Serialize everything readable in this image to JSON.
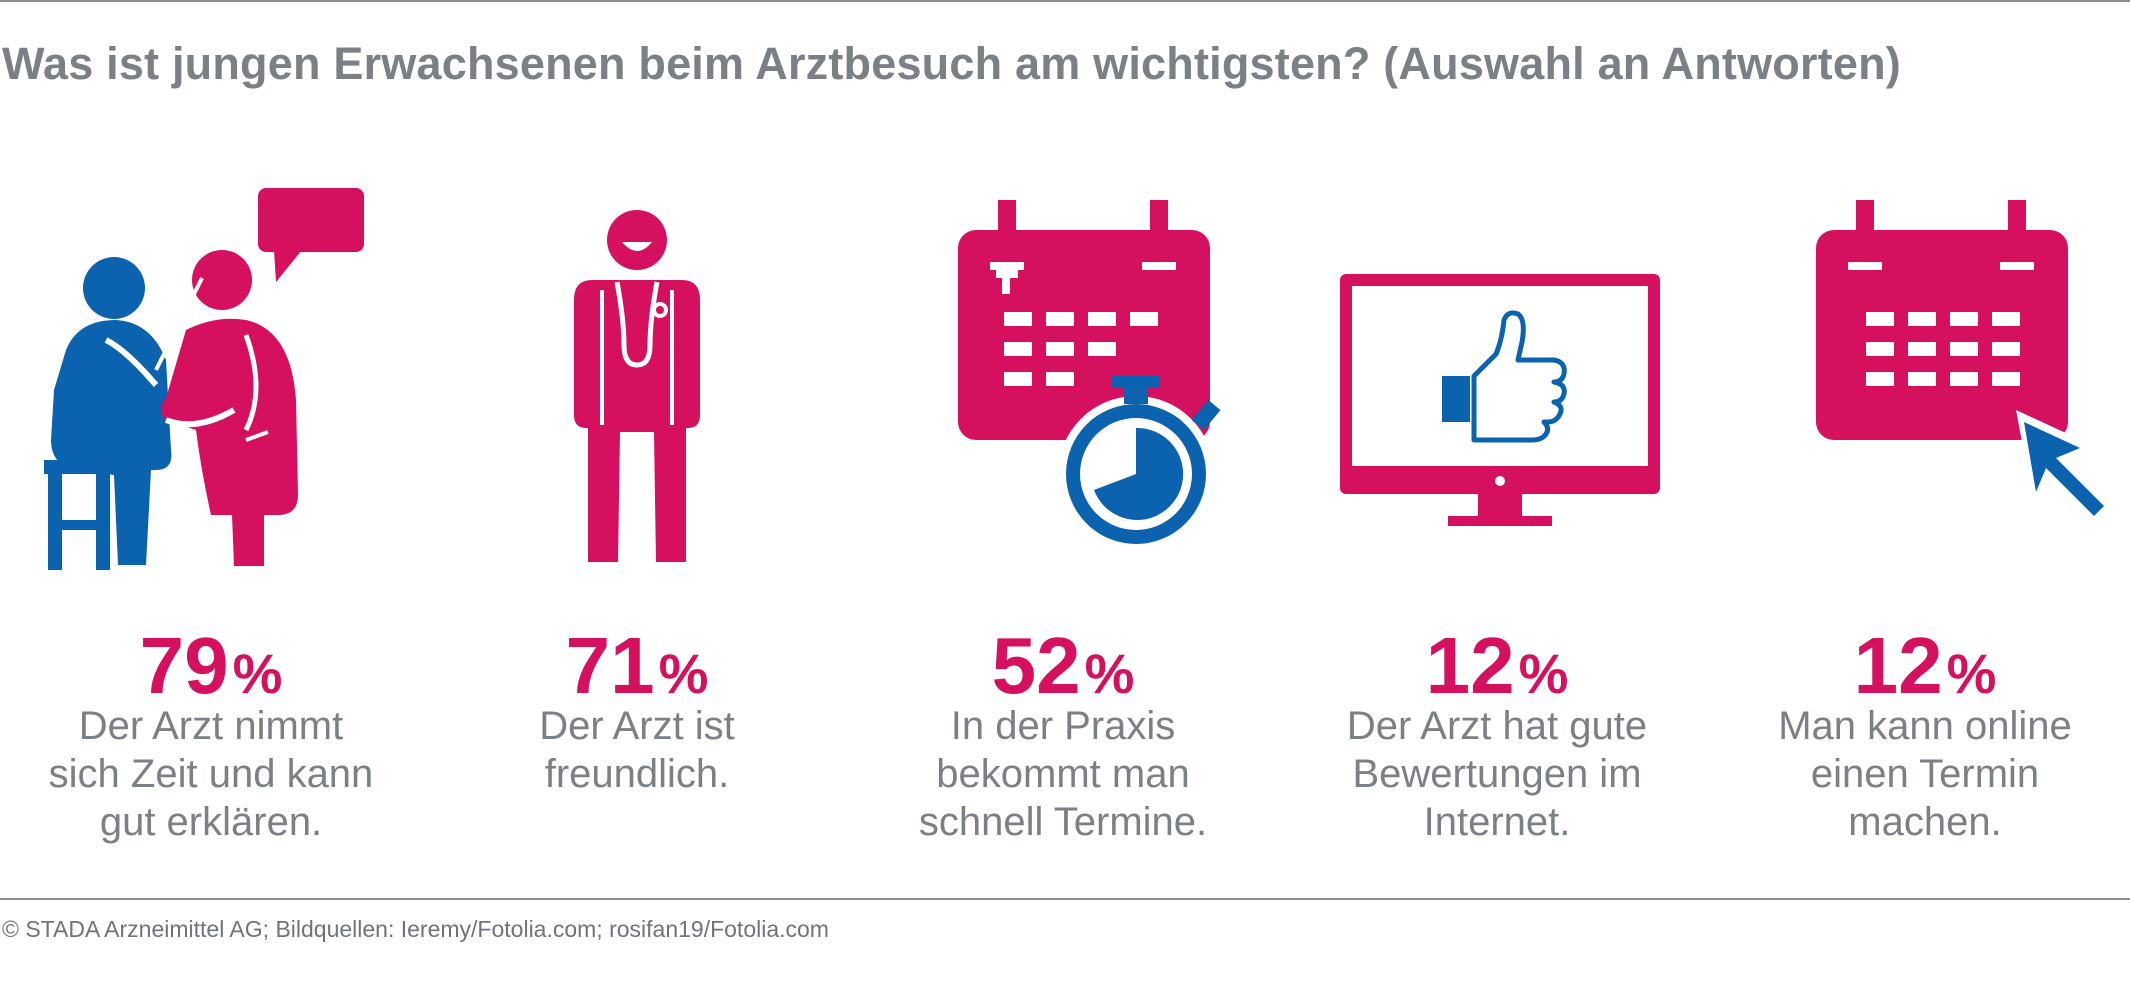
{
  "title": "Was ist jungen Erwachsenen beim Arztbesuch am wichtigsten? (Auswahl an Antworten)",
  "colors": {
    "accent": "#d5105f",
    "blue": "#0b63b0",
    "text": "#7b7f86",
    "rule": "#8a8d93"
  },
  "chart_data": {
    "type": "infographic",
    "title": "Was ist jungen Erwachsenen beim Arztbesuch am wichtigsten? (Auswahl an Antworten)",
    "unit": "%",
    "items": [
      {
        "value": 79,
        "value_text": "79",
        "unit": "%",
        "label_lines": [
          "Der Arzt nimmt",
          "sich Zeit und kann",
          "gut erklären."
        ],
        "icon": "doctor-patient-icon"
      },
      {
        "value": 71,
        "value_text": "71",
        "unit": "%",
        "label_lines": [
          "Der Arzt ist",
          "freundlich."
        ],
        "icon": "smiling-doctor-icon"
      },
      {
        "value": 52,
        "value_text": "52",
        "unit": "%",
        "label_lines": [
          "In der Praxis",
          "bekommt man",
          "schnell Termine."
        ],
        "icon": "calendar-stopwatch-icon"
      },
      {
        "value": 12,
        "value_text": "12",
        "unit": "%",
        "label_lines": [
          "Der Arzt hat gute",
          "Bewertungen im",
          "Internet."
        ],
        "icon": "monitor-thumbs-up-icon"
      },
      {
        "value": 12,
        "value_text": "12",
        "unit": "%",
        "label_lines": [
          "Man kann online",
          "einen Termin",
          "machen."
        ],
        "icon": "calendar-cursor-icon"
      }
    ]
  },
  "footer": "© STADA Arzneimittel AG; Bildquellen: Ieremy/Fotolia.com; rosifan19/Fotolia.com"
}
